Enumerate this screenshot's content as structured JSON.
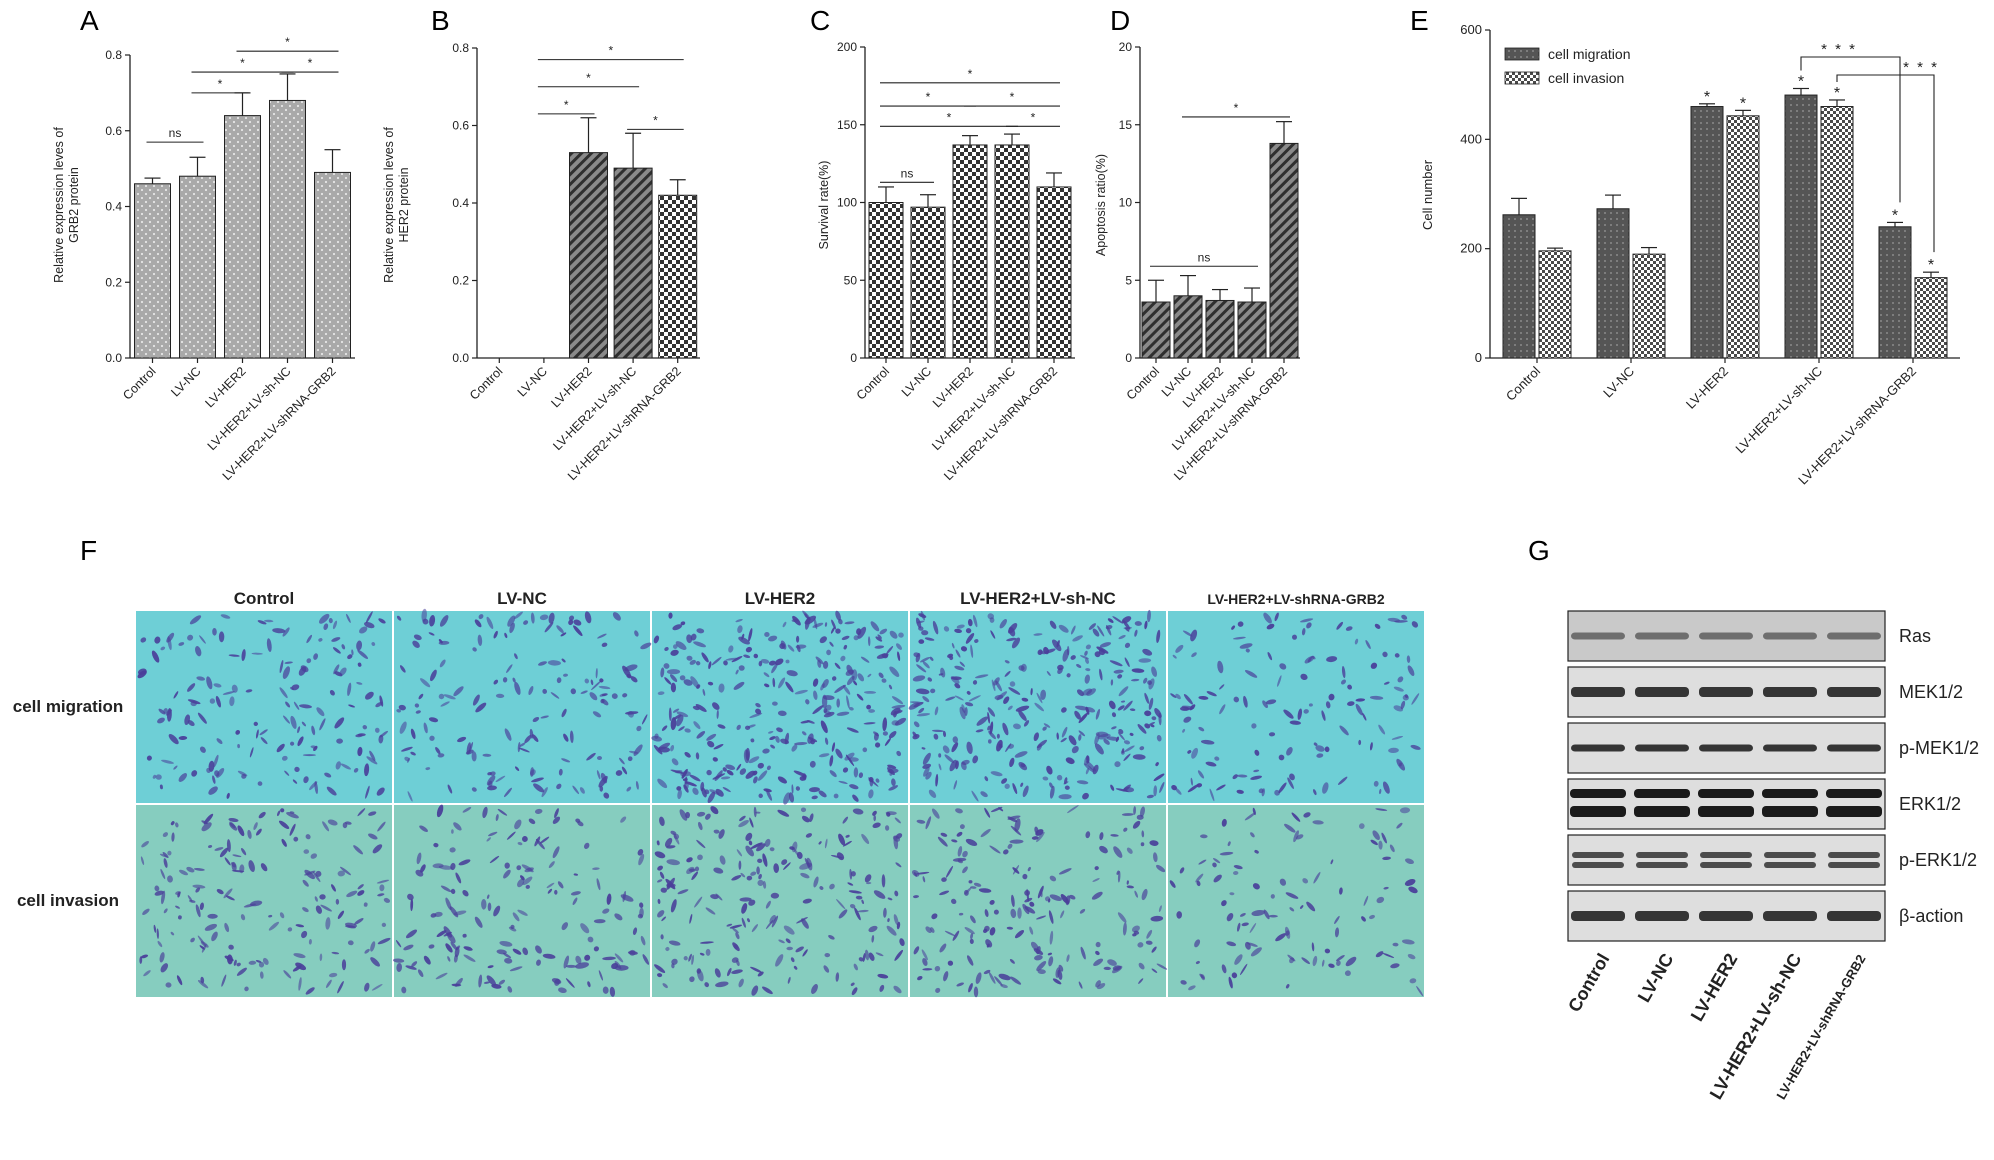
{
  "colors": {
    "ink": "#222222",
    "light_bar": "#a9a9a9",
    "dark_bar": "#555555",
    "micro_bg": "#78c8c8",
    "cell": "#4a3f9a"
  },
  "groups": [
    "Control",
    "LV-NC",
    "LV-HER2",
    "LV-HER2+LV-sh-NC",
    "LV-HER2+LV-shRNA-GRB2"
  ],
  "chart_data": [
    {
      "panel": "A",
      "type": "bar",
      "ylabel": "Relative expression leves of GRB2 protein",
      "categories": [
        "Control",
        "LV-NC",
        "LV-HER2",
        "LV-HER2+LV-sh-NC",
        "LV-HER2+LV-shRNA-GRB2"
      ],
      "values": [
        0.46,
        0.48,
        0.64,
        0.68,
        0.49
      ],
      "errors": [
        0.015,
        0.05,
        0.06,
        0.07,
        0.06
      ],
      "ylim": [
        0,
        0.8
      ],
      "yticks": [
        "0.0",
        "0.2",
        "0.4",
        "0.6",
        "0.8"
      ],
      "annotations": [
        {
          "from": 0,
          "to": 1,
          "y": 0.57,
          "label": "ns"
        },
        {
          "from": 1,
          "to": 2,
          "y": 0.7,
          "label": "*"
        },
        {
          "from": 1,
          "to": 3,
          "y": 0.755,
          "label": "*"
        },
        {
          "from": 3,
          "to": 4,
          "y": 0.755,
          "label": "*"
        },
        {
          "from": 2,
          "to": 4,
          "y": 0.81,
          "label": "*"
        }
      ]
    },
    {
      "panel": "B",
      "type": "bar",
      "ylabel": "Relative expression leves of HER2 protein",
      "categories": [
        "Control",
        "LV-NC",
        "LV-HER2",
        "LV-HER2+LV-sh-NC",
        "LV-HER2+LV-shRNA-GRB2"
      ],
      "values": [
        0,
        0,
        0.53,
        0.49,
        0.42
      ],
      "errors": [
        0,
        0,
        0.09,
        0.09,
        0.04
      ],
      "ylim": [
        0,
        0.8
      ],
      "yticks": [
        "0.0",
        "0.2",
        "0.4",
        "0.6",
        "0.8"
      ],
      "annotations": [
        {
          "from": 1,
          "to": 2,
          "y": 0.63,
          "label": "*"
        },
        {
          "from": 3,
          "to": 4,
          "y": 0.59,
          "label": "*"
        },
        {
          "from": 1,
          "to": 3,
          "y": 0.7,
          "label": "*"
        },
        {
          "from": 1,
          "to": 4,
          "y": 0.77,
          "label": "*"
        }
      ]
    },
    {
      "panel": "C",
      "type": "bar",
      "ylabel": "Survival rate(%)",
      "categories": [
        "Control",
        "LV-NC",
        "LV-HER2",
        "LV-HER2+LV-sh-NC",
        "LV-HER2+LV-shRNA-GRB2"
      ],
      "values": [
        100,
        97,
        137,
        137,
        110
      ],
      "errors": [
        10,
        8,
        6,
        7,
        9
      ],
      "ylim": [
        0,
        200
      ],
      "yticks": [
        "0",
        "50",
        "100",
        "150",
        "200"
      ],
      "annotations": [
        {
          "from": 0,
          "to": 1,
          "y": 113,
          "label": "ns"
        },
        {
          "from": 0,
          "to": 3,
          "y": 149,
          "label": "*"
        },
        {
          "from": 3,
          "to": 4,
          "y": 149,
          "label": "*"
        },
        {
          "from": 0,
          "to": 2,
          "y": 162,
          "label": "*"
        },
        {
          "from": 2,
          "to": 4,
          "y": 162,
          "label": "*"
        },
        {
          "from": 0,
          "to": 4,
          "y": 177,
          "label": "*"
        }
      ]
    },
    {
      "panel": "D",
      "type": "bar",
      "ylabel": "Apoptosis ratio(%)",
      "categories": [
        "Control",
        "LV-NC",
        "LV-HER2",
        "LV-HER2+LV-sh-NC",
        "LV-HER2+LV-shRNA-GRB2"
      ],
      "values": [
        3.6,
        4.0,
        3.7,
        3.6,
        13.8
      ],
      "errors": [
        1.4,
        1.3,
        0.7,
        0.9,
        1.4
      ],
      "ylim": [
        0,
        20
      ],
      "yticks": [
        "0",
        "5",
        "10",
        "15",
        "20"
      ],
      "annotations": [
        {
          "from": 0,
          "to": 3,
          "y": 5.9,
          "label": "ns"
        },
        {
          "from": 1,
          "to": 4,
          "y": 15.5,
          "label": "*"
        }
      ]
    },
    {
      "panel": "E",
      "type": "bar",
      "ylabel": "Cell number",
      "categories": [
        "Control",
        "LV-NC",
        "LV-HER2",
        "LV-HER2+LV-sh-NC",
        "LV-HER2+LV-shRNA-GRB2"
      ],
      "series": [
        {
          "name": "cell migration",
          "values": [
            262,
            273,
            460,
            481,
            240
          ],
          "errors": [
            30,
            25,
            5,
            12,
            8
          ]
        },
        {
          "name": "cell invasion",
          "values": [
            196,
            190,
            443,
            460,
            147
          ],
          "errors": [
            5,
            12,
            10,
            12,
            10
          ]
        }
      ],
      "ylim": [
        0,
        600
      ],
      "yticks": [
        "0",
        "200",
        "400",
        "600"
      ],
      "star_label": "*",
      "bracket_label": "* * *",
      "legend_position": "top-left"
    }
  ],
  "micrographs": {
    "panel_label": "F",
    "columns": [
      "Control",
      "LV-NC",
      "LV-HER2",
      "LV-HER2+LV-sh-NC",
      "LV-HER2+LV-shRNA-GRB2"
    ],
    "rows": [
      "cell migration",
      "cell invasion"
    ],
    "density": [
      [
        0.45,
        0.45,
        1.0,
        0.95,
        0.35
      ],
      [
        0.5,
        0.45,
        0.65,
        0.55,
        0.25
      ]
    ]
  },
  "western": {
    "panel_label": "G",
    "bands": [
      "Ras",
      "MEK1/2",
      "p-MEK1/2",
      "ERK1/2",
      "p-ERK1/2",
      "β-action"
    ],
    "lanes": [
      "Control",
      "LV-NC",
      "LV-HER2",
      "LV-HER2+LV-sh-NC",
      "LV-HER2+LV-shRNA-GRB2"
    ]
  }
}
